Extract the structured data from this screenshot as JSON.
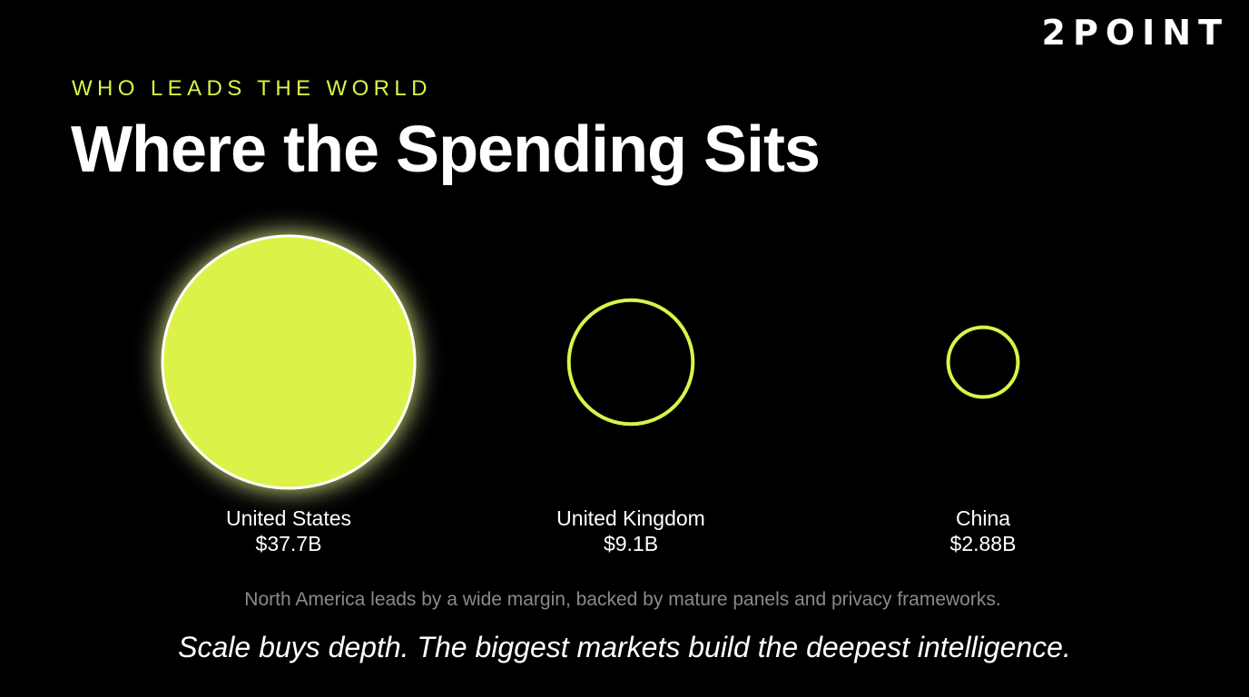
{
  "brand": "2POINT",
  "eyebrow": "WHO LEADS THE WORLD",
  "title": "Where the Spending Sits",
  "chart_data": {
    "type": "bubble",
    "categories": [
      "United States",
      "United Kingdom",
      "China"
    ],
    "values": [
      37.7,
      9.1,
      2.88
    ],
    "value_labels": [
      "$37.7B",
      "$9.1B",
      "$2.88B"
    ],
    "highlight": "United States"
  },
  "footnote": "North America leads by a wide margin, backed by mature panels and privacy frameworks.",
  "tagline": "Scale buys depth. The biggest markets build the deepest intelligence.",
  "colors": {
    "background": "#000000",
    "accent": "#dcf24a",
    "text": "#ffffff",
    "muted": "#8a8a8a"
  }
}
